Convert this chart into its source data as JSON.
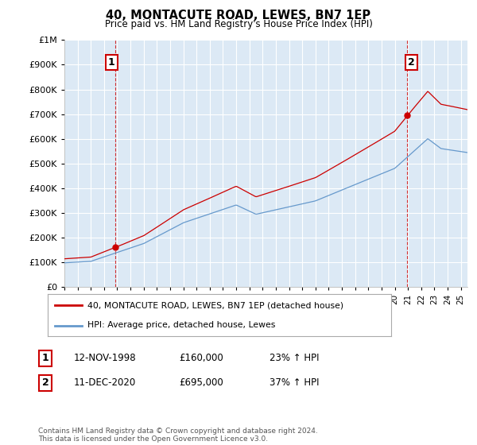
{
  "title": "40, MONTACUTE ROAD, LEWES, BN7 1EP",
  "subtitle": "Price paid vs. HM Land Registry's House Price Index (HPI)",
  "legend_label_red": "40, MONTACUTE ROAD, LEWES, BN7 1EP (detached house)",
  "legend_label_blue": "HPI: Average price, detached house, Lewes",
  "footnote": "Contains HM Land Registry data © Crown copyright and database right 2024.\nThis data is licensed under the Open Government Licence v3.0.",
  "annotation1_date": "12-NOV-1998",
  "annotation1_price": "£160,000",
  "annotation1_hpi": "23% ↑ HPI",
  "annotation2_date": "11-DEC-2020",
  "annotation2_price": "£695,000",
  "annotation2_hpi": "37% ↑ HPI",
  "sale1_year": 1998.87,
  "sale1_price": 160000,
  "sale2_year": 2020.95,
  "sale2_price": 695000,
  "ylim_min": 0,
  "ylim_max": 1000000,
  "xlim_min": 1995.0,
  "xlim_max": 2025.5,
  "red_color": "#cc0000",
  "blue_color": "#6699cc",
  "background_plot": "#dce9f5",
  "background_fig": "#ffffff",
  "grid_color": "#ffffff",
  "vline_color": "#cc0000",
  "annotation_box_color": "#cc0000"
}
